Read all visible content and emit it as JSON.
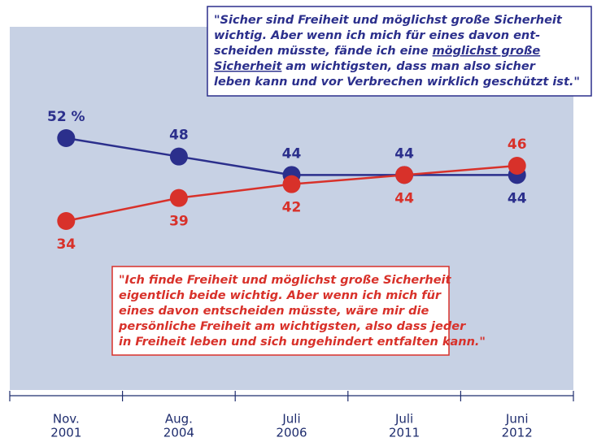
{
  "chart_data": {
    "type": "line",
    "categories": [
      [
        "Nov.",
        "2001"
      ],
      [
        "Aug.",
        "2004"
      ],
      [
        "Juli",
        "2006"
      ],
      [
        "Juli",
        "2011"
      ],
      [
        "Juni",
        "2012"
      ]
    ],
    "series": [
      {
        "color": "#2b2f8c",
        "values": [
          52,
          48,
          44,
          44,
          44
        ],
        "value_labels": [
          "52 %",
          "48",
          "44",
          "44",
          "44"
        ]
      },
      {
        "color": "#d8312a",
        "values": [
          34,
          39,
          42,
          44,
          46
        ]
      }
    ],
    "ylim": [
      20,
      60
    ],
    "annotations": [
      {
        "color": "#2b2f8c",
        "lines": [
          [
            "\"Sicher sind Freiheit und möglichst große Sicherheit"
          ],
          [
            " wichtig. Aber wenn ich mich für eines davon ent-"
          ],
          [
            " scheiden müsste, fände ich eine ",
            {
              "text": "möglichst große",
              "underline": true
            }
          ],
          [
            " ",
            {
              "text": "Sicherheit",
              "underline": true
            },
            " am wichtigsten, dass man also sicher"
          ],
          [
            " leben kann und vor Verbrechen wirklich geschützt ist.\""
          ]
        ]
      },
      {
        "color": "#d8312a",
        "lines": [
          [
            "\"Ich finde Freiheit und möglichst große Sicherheit"
          ],
          [
            " eigentlich beide wichtig. Aber wenn ich mich für"
          ],
          [
            " eines davon entscheiden müsste, wäre mir die"
          ],
          [
            " persönliche Freiheit am wichtigsten, also dass jeder"
          ],
          [
            " in Freiheit leben und sich ungehindert entfalten kann.\""
          ]
        ]
      }
    ]
  }
}
